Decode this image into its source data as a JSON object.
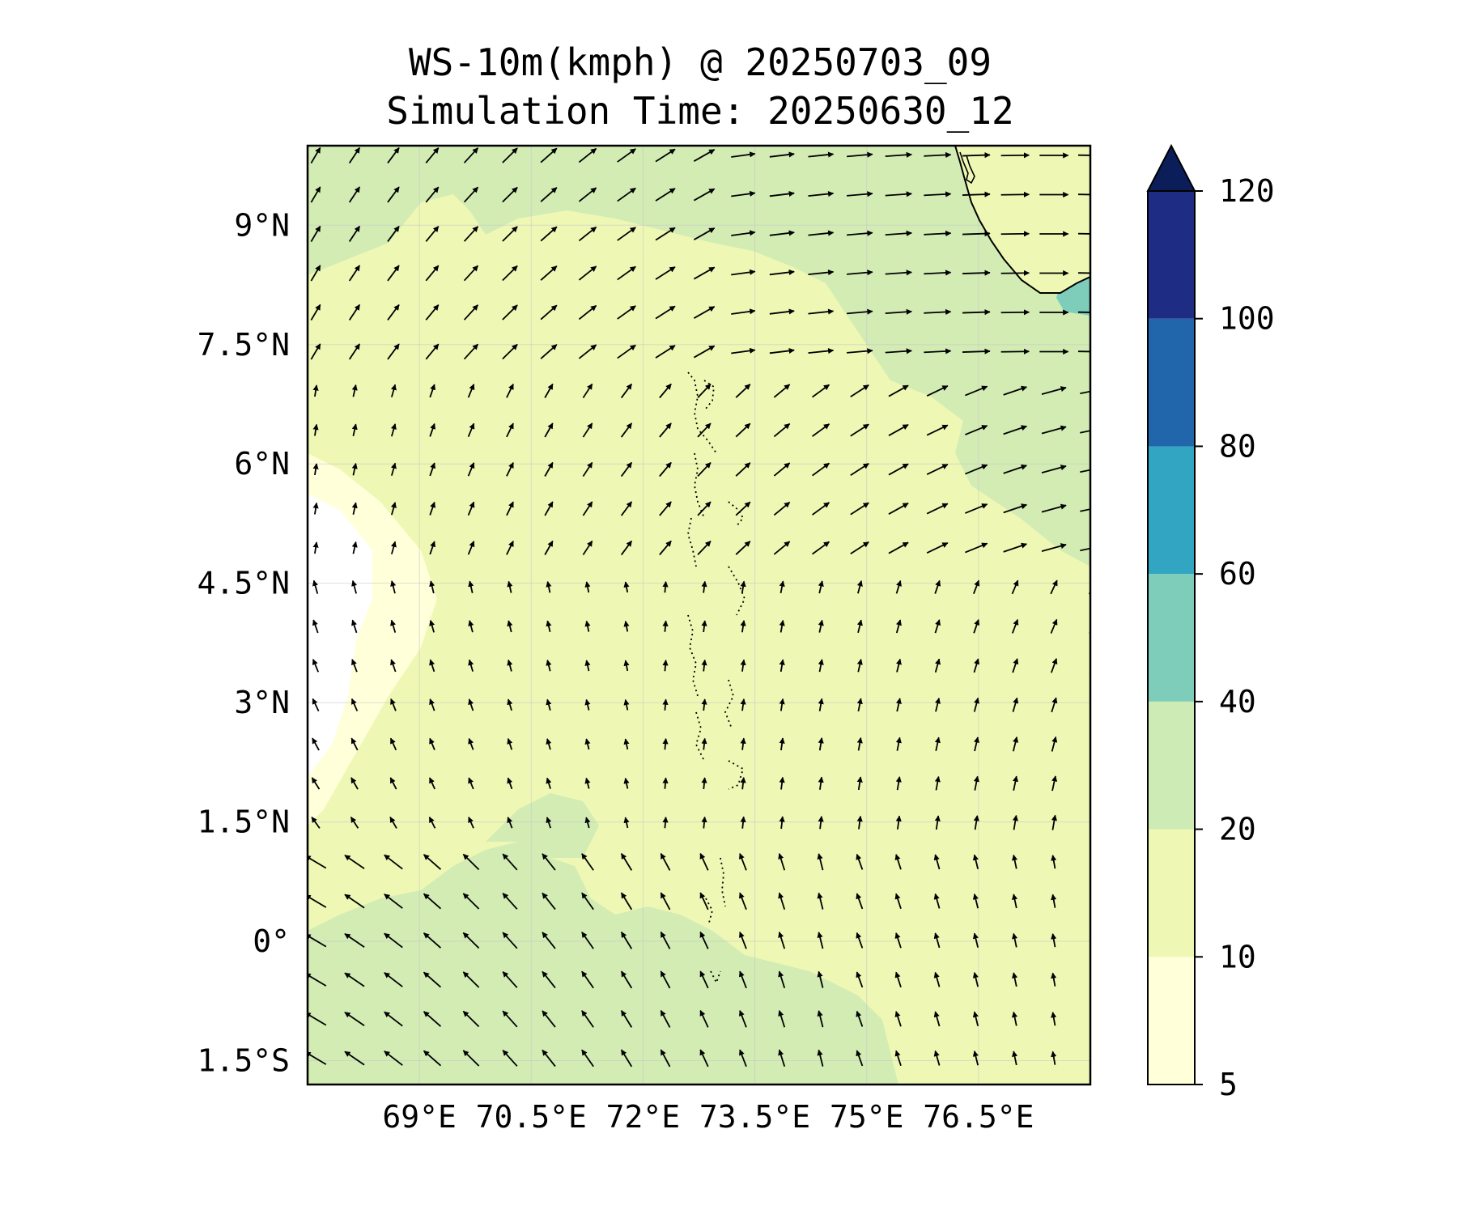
{
  "title": {
    "line1": "WS-10m(kmph) @ 20250703_09",
    "line2": "Simulation Time: 20250630_12"
  },
  "map": {
    "lon_range": [
      67.5,
      78.0
    ],
    "lat_range": [
      -1.8,
      10.0
    ],
    "x_ticks": [
      {
        "value": 69.0,
        "label": "69°E"
      },
      {
        "value": 70.5,
        "label": "70.5°E"
      },
      {
        "value": 72.0,
        "label": "72°E"
      },
      {
        "value": 73.5,
        "label": "73.5°E"
      },
      {
        "value": 75.0,
        "label": "75°E"
      },
      {
        "value": 76.5,
        "label": "76.5°E"
      }
    ],
    "y_ticks": [
      {
        "value": 9.0,
        "label": "9°N"
      },
      {
        "value": 7.5,
        "label": "7.5°N"
      },
      {
        "value": 6.0,
        "label": "6°N"
      },
      {
        "value": 4.5,
        "label": "4.5°N"
      },
      {
        "value": 3.0,
        "label": "3°N"
      },
      {
        "value": 1.5,
        "label": "1.5°N"
      },
      {
        "value": 0.0,
        "label": "0°"
      },
      {
        "value": -1.5,
        "label": "1.5°S"
      }
    ],
    "grid": true,
    "features": [
      "India southwest coastline (upper right)",
      "Maldives atolls (dotted, center)",
      "Sri Lanka not visible"
    ],
    "wind_field_summary": "northwest winds in south, northerly/north-northwest in west-center, westerly in north-east"
  },
  "colorbar": {
    "ticks": [
      "5",
      "10",
      "20",
      "40",
      "60",
      "80",
      "100",
      "120"
    ],
    "colors": [
      "#ffffd9",
      "#eef8b4",
      "#cdebb4",
      "#7ecdbb",
      "#31a5c2",
      "#2165ab",
      "#1e2d83",
      "#0b1e5a"
    ],
    "extend": "max"
  },
  "colors": {
    "speed_lt10": "#ffffd9",
    "speed_10_20": "#eef8b4",
    "speed_20_40": "#d2ecb4",
    "speed_40_60": "#7ecdbb",
    "no_data": "#ffffff"
  }
}
